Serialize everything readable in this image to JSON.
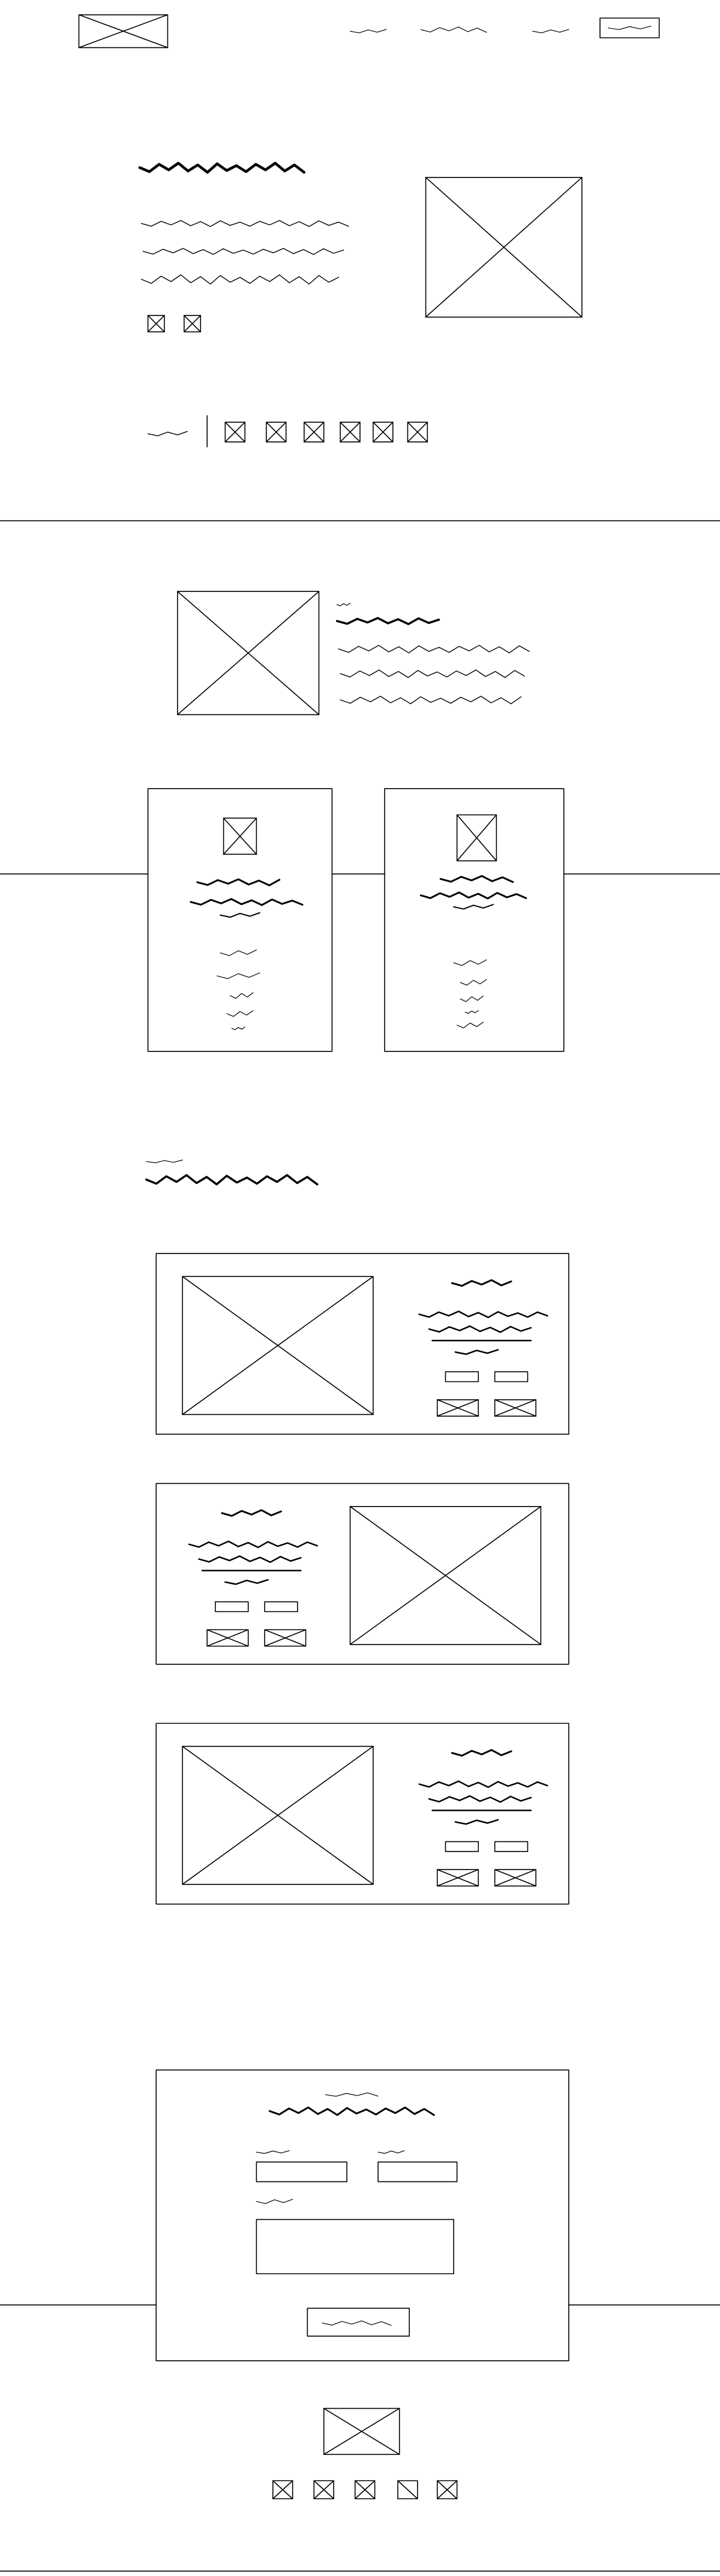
{
  "page": {
    "background_color": "#ffffff",
    "stroke_color": "#000000"
  },
  "header": {
    "logo_icon": "image-placeholder-icon",
    "nav_links_count": 3,
    "cta_button": "scribble-label-button"
  },
  "hero": {
    "image_icon": "image-placeholder-icon",
    "small_icons": [
      "image-placeholder-icon",
      "image-placeholder-icon"
    ],
    "social_icons": [
      "image-placeholder-icon",
      "image-placeholder-icon",
      "image-placeholder-icon",
      "image-placeholder-icon",
      "image-placeholder-icon",
      "image-placeholder-icon"
    ]
  },
  "about": {
    "image_icon": "image-placeholder-icon"
  },
  "features": {
    "cards": [
      {
        "icon": "image-placeholder-icon"
      },
      {
        "icon": "image-placeholder-icon"
      }
    ]
  },
  "projects": {
    "items": [
      {
        "image_side": "left",
        "badge_icons": [
          "image-placeholder-icon",
          "image-placeholder-icon"
        ]
      },
      {
        "image_side": "right",
        "badge_icons": [
          "image-placeholder-icon",
          "image-placeholder-icon"
        ]
      },
      {
        "image_side": "left",
        "badge_icons": [
          "image-placeholder-icon",
          "image-placeholder-icon"
        ]
      }
    ]
  },
  "contact": {
    "submit_button": "scribble-label-button"
  },
  "footer": {
    "logo_icon": "image-placeholder-icon",
    "social_icons": [
      "image-placeholder-icon",
      "image-placeholder-icon",
      "image-placeholder-icon",
      "slash-box-icon",
      "image-placeholder-icon"
    ]
  }
}
